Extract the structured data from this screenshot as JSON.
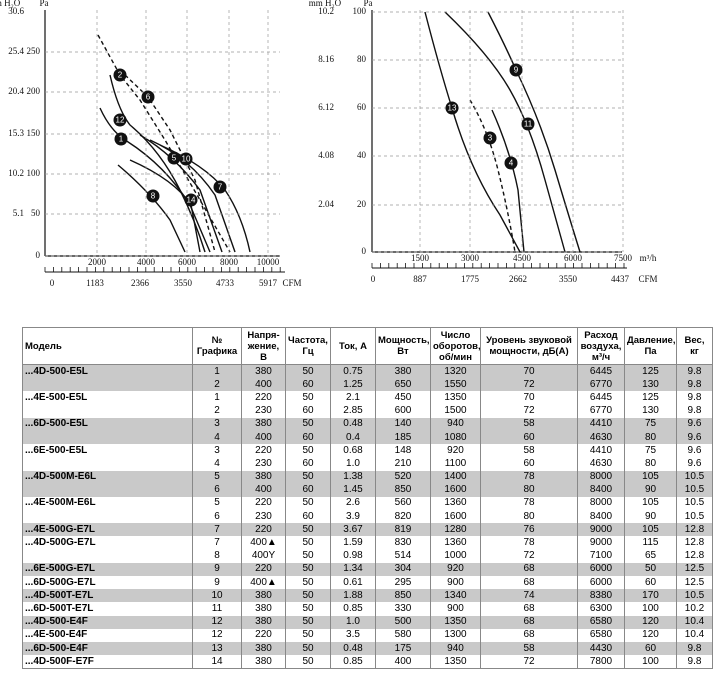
{
  "charts": [
    {
      "y_unit_left": "mm H₂O",
      "y_unit_right": "Pa",
      "y_left_ticks": [
        "30.6",
        "25.4",
        "20.4",
        "15.3",
        "10.2",
        "5.1"
      ],
      "y_right_ticks": [
        "250",
        "200",
        "150",
        "100",
        "50",
        "0"
      ],
      "x_top_ticks": [
        "2000",
        "4000",
        "6000",
        "8000",
        "10000"
      ],
      "x_bottom_ticks": [
        "0",
        "1183",
        "2366",
        "3550",
        "4733",
        "5917"
      ],
      "x_bottom_unit": "CFM",
      "markers": [
        "2",
        "6",
        "12",
        "1",
        "5",
        "10",
        "7",
        "8",
        "14"
      ]
    },
    {
      "y_unit_left": "mm H₂O",
      "y_unit_right": "Pa",
      "y_left_ticks": [
        "10.2",
        "8.16",
        "6.12",
        "4.08",
        "2.04"
      ],
      "y_right_ticks": [
        "100",
        "80",
        "60",
        "40",
        "20",
        "0"
      ],
      "x_top_ticks": [
        "1500",
        "3000",
        "4500",
        "6000",
        "7500"
      ],
      "x_top_unit": "m³/h",
      "x_bottom_ticks": [
        "0",
        "887",
        "1775",
        "2662",
        "3550",
        "4437"
      ],
      "x_bottom_unit": "CFM",
      "markers": [
        "9",
        "13",
        "11",
        "3",
        "4"
      ]
    }
  ],
  "table": {
    "headers": [
      "Модель",
      "№ Графика",
      "Напря-жение, В",
      "Частота, Гц",
      "Ток, А",
      "Мощность, Вт",
      "Число оборотов, об/мин",
      "Уровень звуковой мощности, дБ(А)",
      "Расход воздуха, м³/ч",
      "Давление, Па",
      "Вес, кг"
    ],
    "groups": [
      {
        "model": "...4D-500-E5L",
        "rows": [
          [
            "1",
            "380",
            "50",
            "0.75",
            "380",
            "1320",
            "70",
            "6445",
            "125",
            "9.8"
          ],
          [
            "2",
            "400",
            "60",
            "1.25",
            "650",
            "1550",
            "72",
            "6770",
            "130",
            "9.8"
          ]
        ]
      },
      {
        "model": "...4E-500-E5L",
        "rows": [
          [
            "1",
            "220",
            "50",
            "2.1",
            "450",
            "1350",
            "70",
            "6445",
            "125",
            "9.8"
          ],
          [
            "2",
            "230",
            "60",
            "2.85",
            "600",
            "1500",
            "72",
            "6770",
            "130",
            "9.8"
          ]
        ]
      },
      {
        "model": "...6D-500-E5L",
        "rows": [
          [
            "3",
            "380",
            "50",
            "0.48",
            "140",
            "940",
            "58",
            "4410",
            "75",
            "9.6"
          ],
          [
            "4",
            "400",
            "60",
            "0.4",
            "185",
            "1080",
            "60",
            "4630",
            "80",
            "9.6"
          ]
        ]
      },
      {
        "model": "...6E-500-E5L",
        "rows": [
          [
            "3",
            "220",
            "50",
            "0.68",
            "148",
            "920",
            "58",
            "4410",
            "75",
            "9.6"
          ],
          [
            "4",
            "230",
            "60",
            "1.0",
            "210",
            "1100",
            "60",
            "4630",
            "80",
            "9.6"
          ]
        ]
      },
      {
        "model": "...4D-500M-E6L",
        "rows": [
          [
            "5",
            "380",
            "50",
            "1.38",
            "520",
            "1400",
            "78",
            "8000",
            "105",
            "10.5"
          ],
          [
            "6",
            "400",
            "60",
            "1.45",
            "850",
            "1600",
            "80",
            "8400",
            "90",
            "10.5"
          ]
        ]
      },
      {
        "model": "...4E-500M-E6L",
        "rows": [
          [
            "5",
            "220",
            "50",
            "2.6",
            "560",
            "1360",
            "78",
            "8000",
            "105",
            "10.5"
          ],
          [
            "6",
            "230",
            "60",
            "3.9",
            "820",
            "1600",
            "80",
            "8400",
            "90",
            "10.5"
          ]
        ]
      },
      {
        "model": "...4E-500G-E7L",
        "rows": [
          [
            "7",
            "220",
            "50",
            "3.67",
            "819",
            "1280",
            "76",
            "9000",
            "105",
            "12.8"
          ]
        ]
      },
      {
        "model": "...4D-500G-E7L",
        "rows": [
          [
            "7",
            "400▲",
            "50",
            "1.59",
            "830",
            "1360",
            "78",
            "9000",
            "115",
            "12.8"
          ],
          [
            "8",
            "400Y",
            "50",
            "0.98",
            "514",
            "1000",
            "72",
            "7100",
            "65",
            "12.8"
          ]
        ]
      },
      {
        "model": "...6E-500G-E7L",
        "rows": [
          [
            "9",
            "220",
            "50",
            "1.34",
            "304",
            "920",
            "68",
            "6000",
            "50",
            "12.5"
          ]
        ]
      },
      {
        "model": "...6D-500G-E7L",
        "rows": [
          [
            "9",
            "400▲",
            "50",
            "0.61",
            "295",
            "900",
            "68",
            "6000",
            "60",
            "12.5"
          ]
        ]
      },
      {
        "model": "...4D-500T-E7L",
        "rows": [
          [
            "10",
            "380",
            "50",
            "1.88",
            "850",
            "1340",
            "74",
            "8380",
            "170",
            "10.5"
          ]
        ]
      },
      {
        "model": "...6D-500T-E7L",
        "rows": [
          [
            "11",
            "380",
            "50",
            "0.85",
            "330",
            "900",
            "68",
            "6300",
            "100",
            "10.2"
          ]
        ]
      },
      {
        "model": "...4D-500-E4F",
        "rows": [
          [
            "12",
            "380",
            "50",
            "1.0",
            "500",
            "1350",
            "68",
            "6580",
            "120",
            "10.4"
          ]
        ]
      },
      {
        "model": "...4E-500-E4F",
        "rows": [
          [
            "12",
            "220",
            "50",
            "3.5",
            "580",
            "1300",
            "68",
            "6580",
            "120",
            "10.4"
          ]
        ]
      },
      {
        "model": "...6D-500-E4F",
        "rows": [
          [
            "13",
            "380",
            "50",
            "0.48",
            "175",
            "940",
            "58",
            "4430",
            "60",
            "9.8"
          ]
        ]
      },
      {
        "model": "...4D-500F-E7F",
        "rows": [
          [
            "14",
            "380",
            "50",
            "0.85",
            "400",
            "1350",
            "72",
            "7800",
            "100",
            "9.8"
          ]
        ]
      }
    ]
  }
}
